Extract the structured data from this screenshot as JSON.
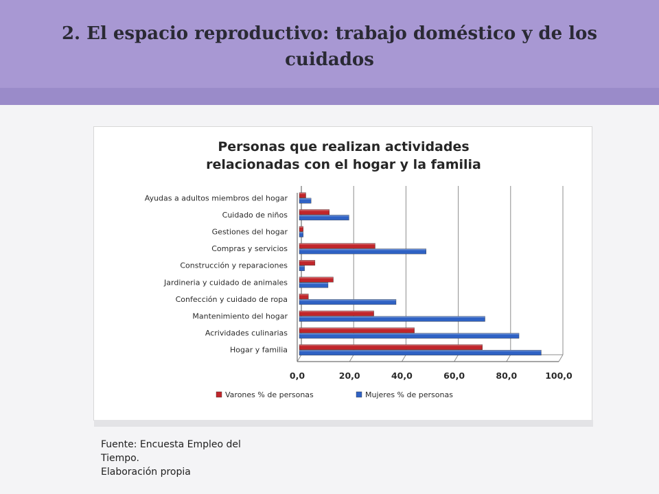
{
  "slide": {
    "title_line1": "2. El espacio reproductivo: trabajo doméstico y de los",
    "title_line2": "cuidados"
  },
  "source": {
    "line1": "Fuente: Encuesta Empleo del",
    "line2": "Tiempo.",
    "line3": "Elaboración propia"
  },
  "colors": {
    "banner": "#a898d3",
    "varones": "#c0262b",
    "mujeres": "#2f62c4"
  },
  "chart_data": {
    "type": "bar",
    "orientation": "horizontal",
    "title_line1": "Personas que realizan actividades",
    "title_line2": "relacionadas con el hogar y la familia",
    "categories": [
      "Ayudas a adultos miembros del hogar",
      "Cuidado de niños",
      "Gestiones del hogar",
      "Compras y servicios",
      "Construcción y reparaciones",
      "Jardineria y cuidado de animales",
      "Confección y cuidado de ropa",
      "Mantenimiento del hogar",
      "Acrividades culinarias",
      "Hogar y familia"
    ],
    "series": [
      {
        "name": "Varones % de personas",
        "color": "#c0262b",
        "values": [
          2.5,
          11.5,
          1.5,
          29.0,
          6.0,
          13.0,
          3.5,
          28.5,
          44.0,
          70.0
        ]
      },
      {
        "name": "Mujeres % de personas",
        "color": "#2f62c4",
        "values": [
          4.5,
          19.0,
          1.5,
          48.5,
          2.0,
          11.0,
          37.0,
          71.0,
          84.0,
          92.5
        ]
      }
    ],
    "xlim": [
      0,
      100
    ],
    "xticks": [
      "0,0",
      "20,0",
      "40,0",
      "60,0",
      "80,0",
      "100,0"
    ],
    "grid": true,
    "legend": "bottom"
  }
}
